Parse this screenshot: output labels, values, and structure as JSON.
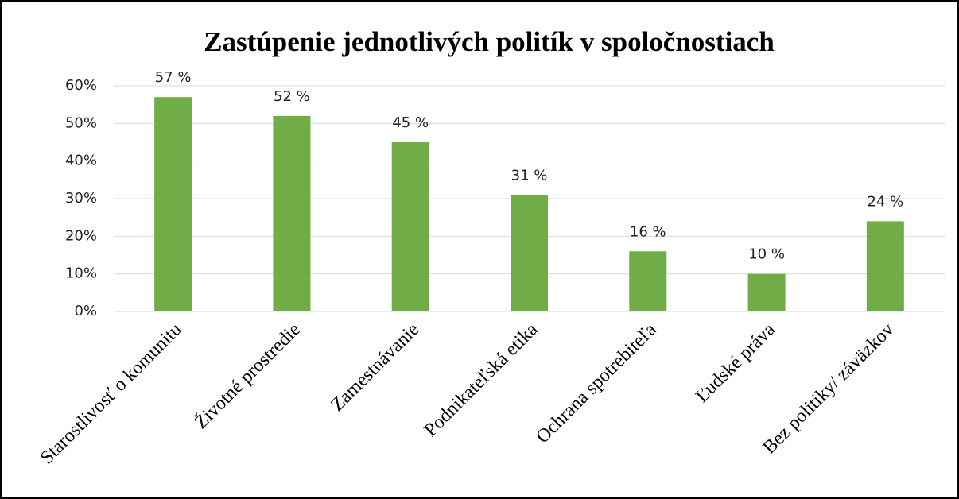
{
  "chart_data": {
    "type": "bar",
    "title": "Zastúpenie jednotlivých politík v spoločnostiach",
    "categories": [
      "Starostlivosť o komunitu",
      "Životné prostredie",
      "Zamestnávanie",
      "Podnikateľská etika",
      "Ochrana spotrebiteľa",
      "Ľudské práva",
      "Bez politiky/ záväzkov"
    ],
    "values": [
      57,
      52,
      45,
      31,
      16,
      10,
      24
    ],
    "value_labels": [
      "57 %",
      "52 %",
      "45 %",
      "31 %",
      "16 %",
      "10 %",
      "24 %"
    ],
    "color": "#70ad47",
    "ylim": [
      0,
      60
    ],
    "yticks": [
      {
        "value": 0,
        "label": "0%"
      },
      {
        "value": 10,
        "label": "10%"
      },
      {
        "value": 20,
        "label": "20%"
      },
      {
        "value": 30,
        "label": "30%"
      },
      {
        "value": 40,
        "label": "40%"
      },
      {
        "value": 50,
        "label": "50%"
      },
      {
        "value": 60,
        "label": "60%"
      }
    ],
    "grid": true
  }
}
